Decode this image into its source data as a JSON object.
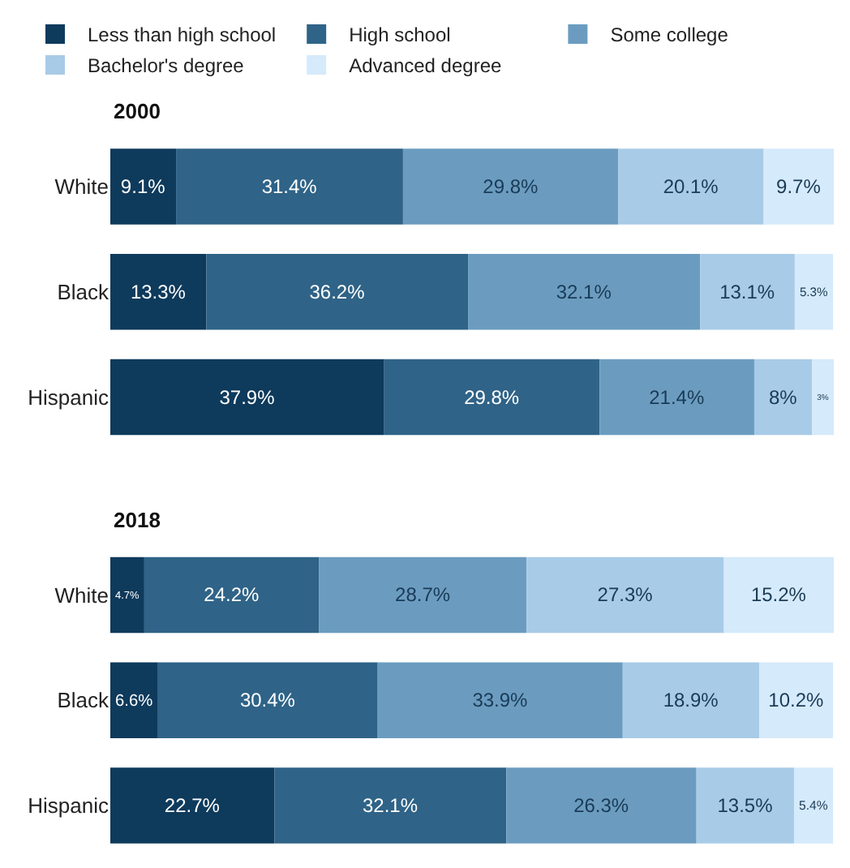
{
  "chart_data": [
    {
      "type": "bar",
      "orientation": "horizontal",
      "stacked": true,
      "title": "2000",
      "categories": [
        "White",
        "Black",
        "Hispanic"
      ],
      "xlim": [
        0,
        101
      ],
      "tick_labels": "y",
      "legend": "top left",
      "series": [
        {
          "name": "Less than high school",
          "color": "#0e3a5c",
          "values": [
            9.1,
            13.3,
            37.9
          ],
          "value_labels": [
            "9.1%",
            "13.3%",
            "37.9%"
          ]
        },
        {
          "name": "High school",
          "color": "#2f6387",
          "values": [
            31.4,
            36.2,
            29.8
          ],
          "value_labels": [
            "31.4%",
            "36.2%",
            "29.8%"
          ]
        },
        {
          "name": "Some college",
          "color": "#6b9cc0",
          "values": [
            29.8,
            32.1,
            21.4
          ],
          "value_labels": [
            "29.8%",
            "32.1%",
            "21.4%"
          ]
        },
        {
          "name": "Bachelor's degree",
          "color": "#a8cbe7",
          "values": [
            20.1,
            13.1,
            8
          ],
          "value_labels": [
            "20.1%",
            "13.1%",
            "8%"
          ]
        },
        {
          "name": "Advanced degree",
          "color": "#d5eafa",
          "values": [
            9.7,
            5.3,
            3
          ],
          "value_labels": [
            "9.7%",
            "5.3%",
            "3%"
          ]
        }
      ]
    },
    {
      "type": "bar",
      "orientation": "horizontal",
      "stacked": true,
      "title": "2018",
      "categories": [
        "White",
        "Black",
        "Hispanic"
      ],
      "xlim": [
        0,
        101
      ],
      "tick_labels": "y",
      "series": [
        {
          "color": "#0e3a5c",
          "values": [
            4.7,
            6.6,
            22.7
          ],
          "value_labels": [
            "4.7%",
            "6.6%",
            "22.7%"
          ]
        },
        {
          "color": "#2f6387",
          "values": [
            24.2,
            30.4,
            32.1
          ],
          "value_labels": [
            "24.2%",
            "30.4%",
            "32.1%"
          ]
        },
        {
          "color": "#6b9cc0",
          "values": [
            28.7,
            33.9,
            26.3
          ],
          "value_labels": [
            "28.7%",
            "33.9%",
            "26.3%"
          ]
        },
        {
          "color": "#a8cbe7",
          "values": [
            27.3,
            18.9,
            13.5
          ],
          "value_labels": [
            "27.3%",
            "18.9%",
            "13.5%"
          ]
        },
        {
          "color": "#d5eafa",
          "values": [
            15.2,
            10.2,
            5.4
          ],
          "value_labels": [
            "15.2%",
            "10.2%",
            "5.4%"
          ]
        }
      ]
    }
  ]
}
